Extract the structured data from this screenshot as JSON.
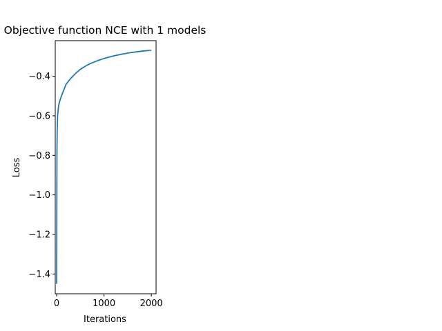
{
  "chart_data": {
    "type": "line",
    "title": "Objective function NCE with 1 models",
    "xlabel": "Iterations",
    "ylabel": "Loss",
    "xlim": [
      -30,
      2100
    ],
    "ylim": [
      -1.5,
      -0.22
    ],
    "xticks": [
      0,
      1000,
      2000
    ],
    "xtick_labels": [
      "0",
      "1000",
      "2000"
    ],
    "yticks": [
      -1.4,
      -1.2,
      -1.0,
      -0.8,
      -0.6,
      -0.4
    ],
    "ytick_labels": [
      "−1.4",
      "−1.2",
      "−1.0",
      "−0.8",
      "−0.6",
      "−0.4"
    ],
    "grid": false,
    "series": [
      {
        "color": "#1f77b4",
        "points": [
          [
            0,
            -1.45
          ],
          [
            2,
            -1.2
          ],
          [
            4,
            -0.95
          ],
          [
            6,
            -0.78
          ],
          [
            10,
            -0.68
          ],
          [
            20,
            -0.6
          ],
          [
            40,
            -0.55
          ],
          [
            60,
            -0.53
          ],
          [
            100,
            -0.5
          ],
          [
            150,
            -0.47
          ],
          [
            200,
            -0.44
          ],
          [
            300,
            -0.41
          ],
          [
            400,
            -0.385
          ],
          [
            500,
            -0.365
          ],
          [
            600,
            -0.35
          ],
          [
            700,
            -0.337
          ],
          [
            800,
            -0.327
          ],
          [
            900,
            -0.318
          ],
          [
            1000,
            -0.31
          ],
          [
            1200,
            -0.297
          ],
          [
            1400,
            -0.287
          ],
          [
            1600,
            -0.279
          ],
          [
            1800,
            -0.273
          ],
          [
            2000,
            -0.268
          ]
        ]
      }
    ]
  }
}
